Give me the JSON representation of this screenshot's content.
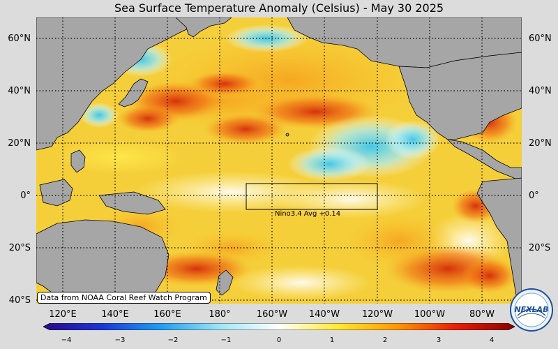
{
  "title": "Sea Surface Temperature Anomaly (Celsius) - May 30 2025",
  "lat_labels": [
    "60°N",
    "40°N",
    "20°N",
    "0°",
    "20°S",
    "40°S"
  ],
  "lon_labels": [
    "120°E",
    "140°E",
    "160°E",
    "180°",
    "160°W",
    "140°W",
    "120°W",
    "100°W",
    "80°W"
  ],
  "credit": "Data from NOAA Coral Reef Watch Program",
  "nino_label": "Nino3.4 Avg  +0.14",
  "colorbar": {
    "ticks": [
      "−4",
      "−3",
      "−2",
      "−1",
      "0",
      "1",
      "2",
      "3",
      "4"
    ],
    "colors": [
      "#2a0a8a",
      "#1c36d8",
      "#1e9ef2",
      "#9fe6f5",
      "#ffffff",
      "#ffe833",
      "#ff9900",
      "#e81e05",
      "#8a0000"
    ]
  },
  "logo_text": "NEXLAB"
}
